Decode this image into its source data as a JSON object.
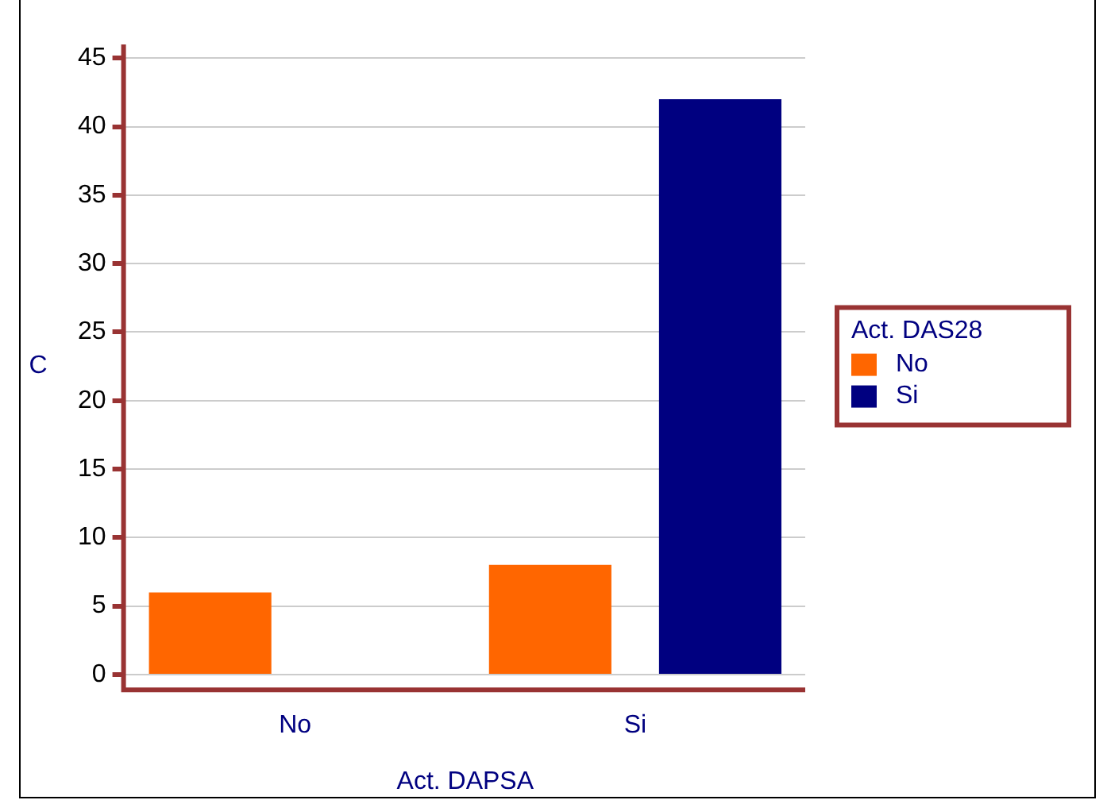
{
  "chart_data": {
    "type": "bar",
    "xlabel": "Act. DAPSA",
    "ylabel": "C",
    "legend_title": "Act. DAS28",
    "categories": [
      "No",
      "Si"
    ],
    "series": [
      {
        "name": "No",
        "color": "#ff6600",
        "values": [
          6,
          8
        ]
      },
      {
        "name": "Si",
        "color": "#000080",
        "values": [
          null,
          42
        ]
      }
    ],
    "ylim": [
      -1,
      46
    ],
    "yticks": [
      0,
      5,
      10,
      15,
      20,
      25,
      30,
      35,
      40,
      45
    ],
    "grid": "y",
    "legend": "right"
  }
}
